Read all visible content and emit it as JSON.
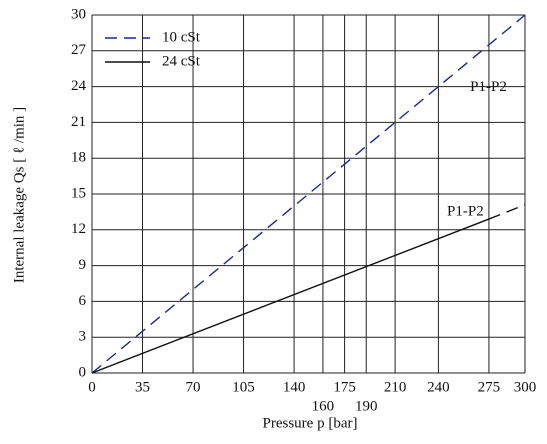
{
  "chart_data": {
    "type": "line",
    "xlabel": "Pressure  p  [bar]",
    "ylabel": "Internal  leakage Qs [ ℓ /min ]",
    "xlim": [
      0,
      300
    ],
    "ylim": [
      0,
      30
    ],
    "xticks": [
      0,
      35,
      70,
      105,
      140,
      160,
      175,
      190,
      210,
      240,
      275,
      300
    ],
    "xticks_lower_row_indices": [
      5,
      7
    ],
    "yticks": [
      0,
      3,
      6,
      9,
      12,
      15,
      18,
      21,
      24,
      27,
      30
    ],
    "grid": true,
    "legend": "upper left",
    "series": [
      {
        "name": "10 cSt",
        "color": "#1a2a8c",
        "x": [
          0,
          300
        ],
        "values": [
          0,
          30
        ],
        "dashed_segments": [
          true
        ]
      },
      {
        "name": "24 cSt",
        "color": "#111111",
        "x": [
          0,
          275,
          300
        ],
        "values": [
          0,
          12.9,
          14.1
        ],
        "dashed_segments": [
          false,
          true
        ]
      }
    ],
    "annotations": [
      {
        "text": "P1-P2",
        "x": 262,
        "y": 23.9
      },
      {
        "text": "P1-P2",
        "x": 246,
        "y": 13.5
      }
    ]
  }
}
